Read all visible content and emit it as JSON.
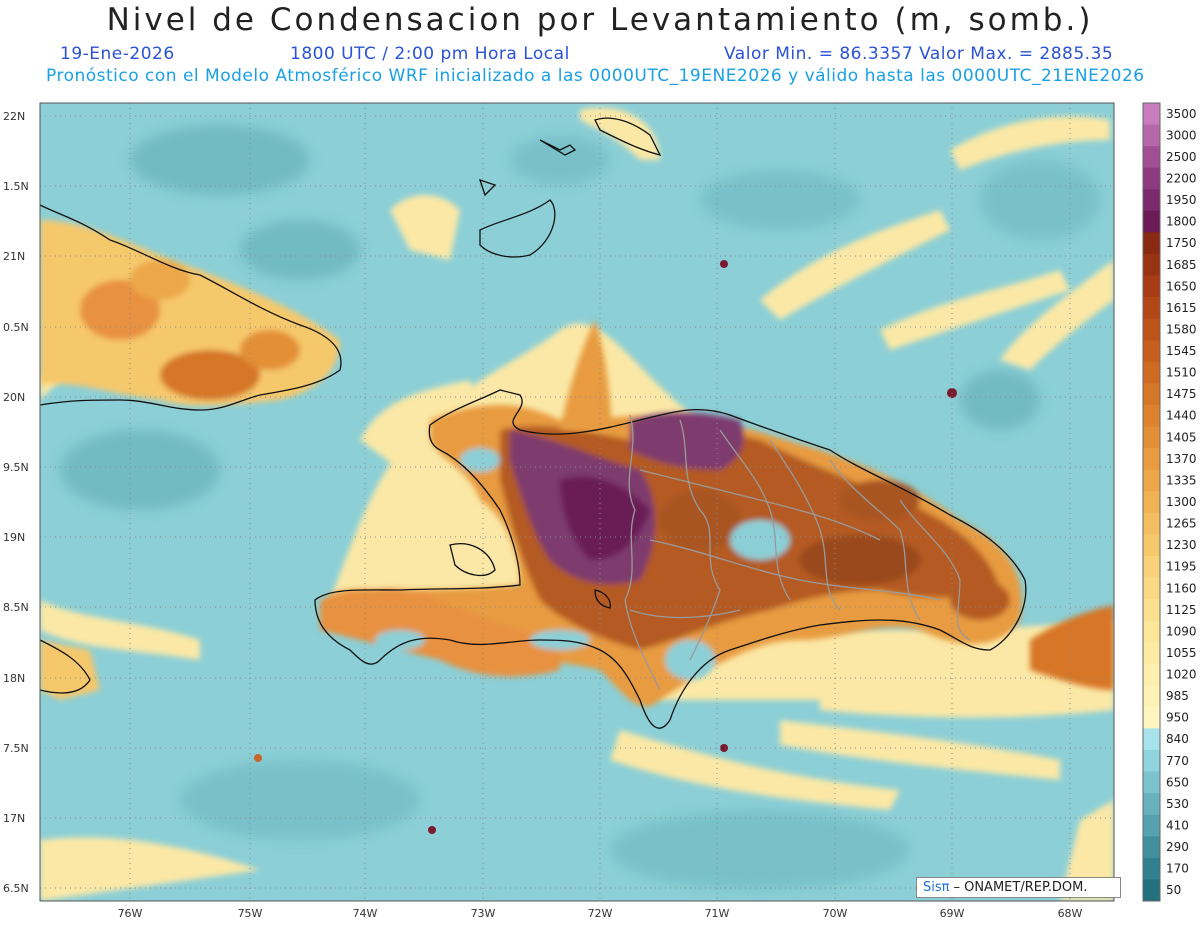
{
  "header": {
    "title": "Nivel de Condensacion por Levantamiento (m, somb.)",
    "date": "19-Ene-2026",
    "time": "1800 UTC / 2:00 pm Hora Local",
    "minmax": "Valor Min. = 86.3357   Valor Max. = 2885.35",
    "forecast": "Pronóstico con el Modelo Atmosférico WRF inicializado a las 0000UTC_19ENE2026 y válido hasta las  0000UTC_21ENE2026"
  },
  "map": {
    "lat_ticks": [
      "22N",
      "1.5N",
      "21N",
      "0.5N",
      "20N",
      "9.5N",
      "19N",
      "8.5N",
      "18N",
      "7.5N",
      "17N",
      "6.5N"
    ],
    "lon_ticks": [
      "76W",
      "75W",
      "74W",
      "73W",
      "72W",
      "71W",
      "70W",
      "69W",
      "68W"
    ]
  },
  "colorbar": {
    "labels": [
      "3500",
      "3000",
      "2500",
      "2200",
      "1950",
      "1800",
      "1750",
      "1685",
      "1650",
      "1615",
      "1580",
      "1545",
      "1510",
      "1475",
      "1440",
      "1405",
      "1370",
      "1335",
      "1300",
      "1265",
      "1230",
      "1195",
      "1160",
      "1125",
      "1090",
      "1055",
      "1020",
      "985",
      "950",
      "840",
      "770",
      "650",
      "530",
      "410",
      "290",
      "170",
      "50"
    ],
    "colors": [
      "#c77dbe",
      "#b467a9",
      "#a04f94",
      "#8c3b80",
      "#7a2a6d",
      "#6a1a55",
      "#8a2a12",
      "#9a3312",
      "#a83c14",
      "#b44716",
      "#be5319",
      "#c75e1d",
      "#cf6a22",
      "#d67627",
      "#dd832e",
      "#e38f36",
      "#e89b3f",
      "#eca749",
      "#f0b354",
      "#f3be60",
      "#f6c86c",
      "#f8d178",
      "#fad984",
      "#fbe08f",
      "#fce699",
      "#fdeba3",
      "#fdefad",
      "#fef2b6",
      "#fef5c0",
      "#a6e3ea",
      "#8fd3dc",
      "#7bc3cd",
      "#68b2be",
      "#55a1ae",
      "#42909e",
      "#31808f",
      "#23707f"
    ]
  },
  "credit": {
    "sis": "Sisπ",
    "text": "– ONAMET/REP.DOM."
  },
  "colors": {
    "ocean": "#8ccfd6",
    "title_blue": "#2a52d6",
    "subtitle_cyan": "#19a0e6"
  }
}
